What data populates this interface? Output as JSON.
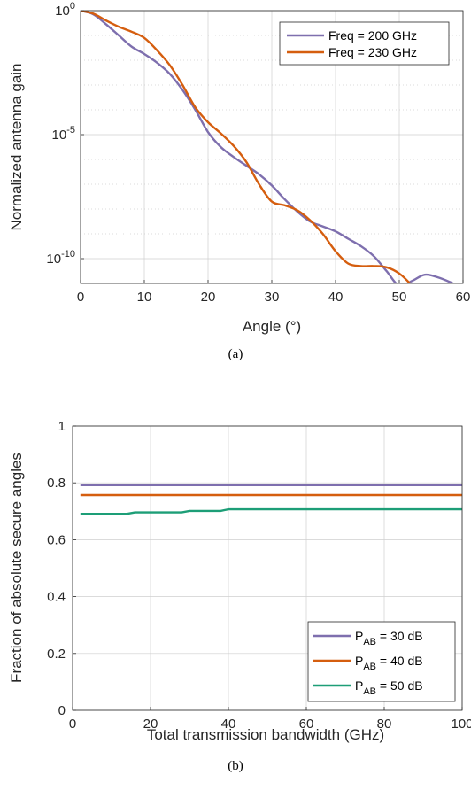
{
  "chart_data": [
    {
      "type": "line",
      "caption": "(a)",
      "xlabel": "Angle (°)",
      "ylabel": "Normalized antenna gain",
      "xlim": [
        0,
        60
      ],
      "ylim_log10": [
        -11,
        0
      ],
      "yscale": "log",
      "x_ticks": [
        "0",
        "10",
        "20",
        "30",
        "40",
        "50",
        "60"
      ],
      "y_ticks": [
        {
          "base": "10",
          "exp": "0",
          "log10": 0
        },
        {
          "base": "10",
          "exp": "-5",
          "log10": -5
        },
        {
          "base": "10",
          "exp": "-10",
          "log10": -10
        }
      ],
      "grid": true,
      "legend_placement": "top-right",
      "series": [
        {
          "name": "Freq = 200 GHz",
          "color": "#7E6FAE",
          "x": [
            0,
            2,
            4,
            6,
            8,
            10,
            12,
            14,
            16,
            18,
            20,
            22,
            24,
            26,
            28,
            30,
            32,
            34,
            36,
            38,
            40,
            42,
            44,
            46,
            48,
            50,
            52,
            54,
            56,
            58,
            60
          ],
          "log10": [
            0,
            -0.15,
            -0.55,
            -1.0,
            -1.45,
            -1.75,
            -2.1,
            -2.55,
            -3.2,
            -4.0,
            -4.9,
            -5.5,
            -5.9,
            -6.25,
            -6.6,
            -7.05,
            -7.6,
            -8.1,
            -8.5,
            -8.7,
            -8.9,
            -9.2,
            -9.5,
            -9.9,
            -10.5,
            -11.1,
            -10.9,
            -10.65,
            -10.75,
            -10.95,
            -11.2
          ]
        },
        {
          "name": "Freq = 230 GHz",
          "color": "#D55E0F",
          "x": [
            0,
            2,
            4,
            6,
            8,
            10,
            12,
            14,
            16,
            18,
            20,
            22,
            24,
            26,
            28,
            30,
            32,
            34,
            36,
            38,
            40,
            42,
            44,
            46,
            48,
            50,
            52,
            54,
            56,
            58,
            60
          ],
          "log10": [
            0,
            -0.12,
            -0.4,
            -0.65,
            -0.85,
            -1.1,
            -1.6,
            -2.2,
            -3.0,
            -3.9,
            -4.5,
            -4.95,
            -5.45,
            -6.1,
            -7.0,
            -7.7,
            -7.85,
            -8.05,
            -8.45,
            -9.0,
            -9.7,
            -10.2,
            -10.3,
            -10.3,
            -10.35,
            -10.6,
            -11.1,
            -11.8,
            -12.35,
            -12.05,
            -11.85
          ]
        }
      ]
    },
    {
      "type": "line",
      "caption": "(b)",
      "xlabel": "Total transmission bandwidth (GHz)",
      "ylabel": "Fraction of absolute secure angles",
      "xlim": [
        0,
        100
      ],
      "ylim": [
        0,
        1
      ],
      "x_ticks": [
        "0",
        "20",
        "40",
        "60",
        "80",
        "100"
      ],
      "y_ticks": [
        "0",
        "0.2",
        "0.4",
        "0.6",
        "0.8",
        "1"
      ],
      "grid": true,
      "legend_placement": "bottom-right",
      "series": [
        {
          "name_main": "P",
          "name_sub": "AB",
          "name_rest": " = 30 dB",
          "color": "#7E6FAE",
          "x": [
            2,
            100
          ],
          "y": [
            0.792,
            0.792
          ]
        },
        {
          "name_main": "P",
          "name_sub": "AB",
          "name_rest": " = 40 dB",
          "color": "#D55E0F",
          "x": [
            2,
            100
          ],
          "y": [
            0.757,
            0.757
          ]
        },
        {
          "name_main": "P",
          "name_sub": "AB",
          "name_rest": " = 50 dB",
          "color": "#1D9E77",
          "x": [
            2,
            14,
            16,
            28,
            30,
            38,
            40,
            100
          ],
          "y": [
            0.691,
            0.691,
            0.696,
            0.696,
            0.701,
            0.701,
            0.707,
            0.707
          ]
        }
      ]
    }
  ]
}
